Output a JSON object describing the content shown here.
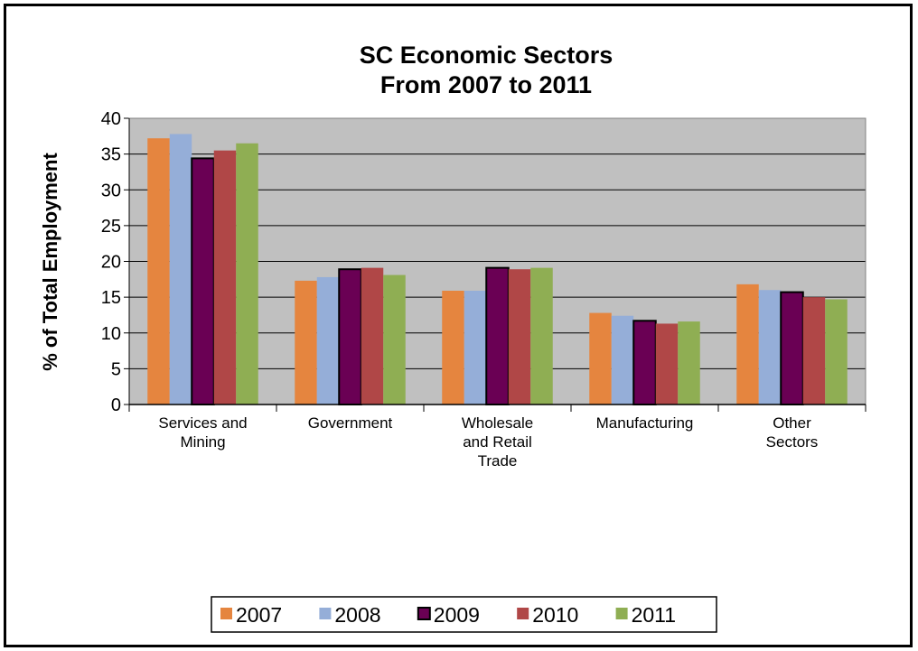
{
  "chart_data": {
    "type": "bar",
    "title": [
      "SC Economic Sectors",
      "From 2007 to 2011"
    ],
    "xlabel": "",
    "ylabel": "% of Total Employment",
    "ylim": [
      0,
      40
    ],
    "yticks": [
      0,
      5,
      10,
      15,
      20,
      25,
      30,
      35,
      40
    ],
    "grid": true,
    "legend": "bottom",
    "categories": [
      [
        "Services and",
        "Mining"
      ],
      [
        "Government"
      ],
      [
        "Wholesale",
        "and Retail",
        "Trade"
      ],
      [
        "Manufacturing"
      ],
      [
        "Other",
        "Sectors"
      ]
    ],
    "series": [
      {
        "name": "2007",
        "color": "#E5853F",
        "outlined": false,
        "values": [
          37.2,
          17.3,
          15.9,
          12.8,
          16.8
        ]
      },
      {
        "name": "2008",
        "color": "#95AED8",
        "outlined": false,
        "values": [
          37.8,
          17.8,
          15.9,
          12.4,
          16.0
        ]
      },
      {
        "name": "2009",
        "color": "#6A0054",
        "outlined": true,
        "values": [
          34.4,
          18.9,
          19.1,
          11.7,
          15.7
        ]
      },
      {
        "name": "2010",
        "color": "#B04747",
        "outlined": false,
        "values": [
          35.5,
          19.1,
          18.9,
          11.3,
          15.0
        ]
      },
      {
        "name": "2011",
        "color": "#8FAE53",
        "outlined": false,
        "values": [
          36.5,
          18.1,
          19.1,
          11.6,
          14.7
        ]
      }
    ]
  }
}
